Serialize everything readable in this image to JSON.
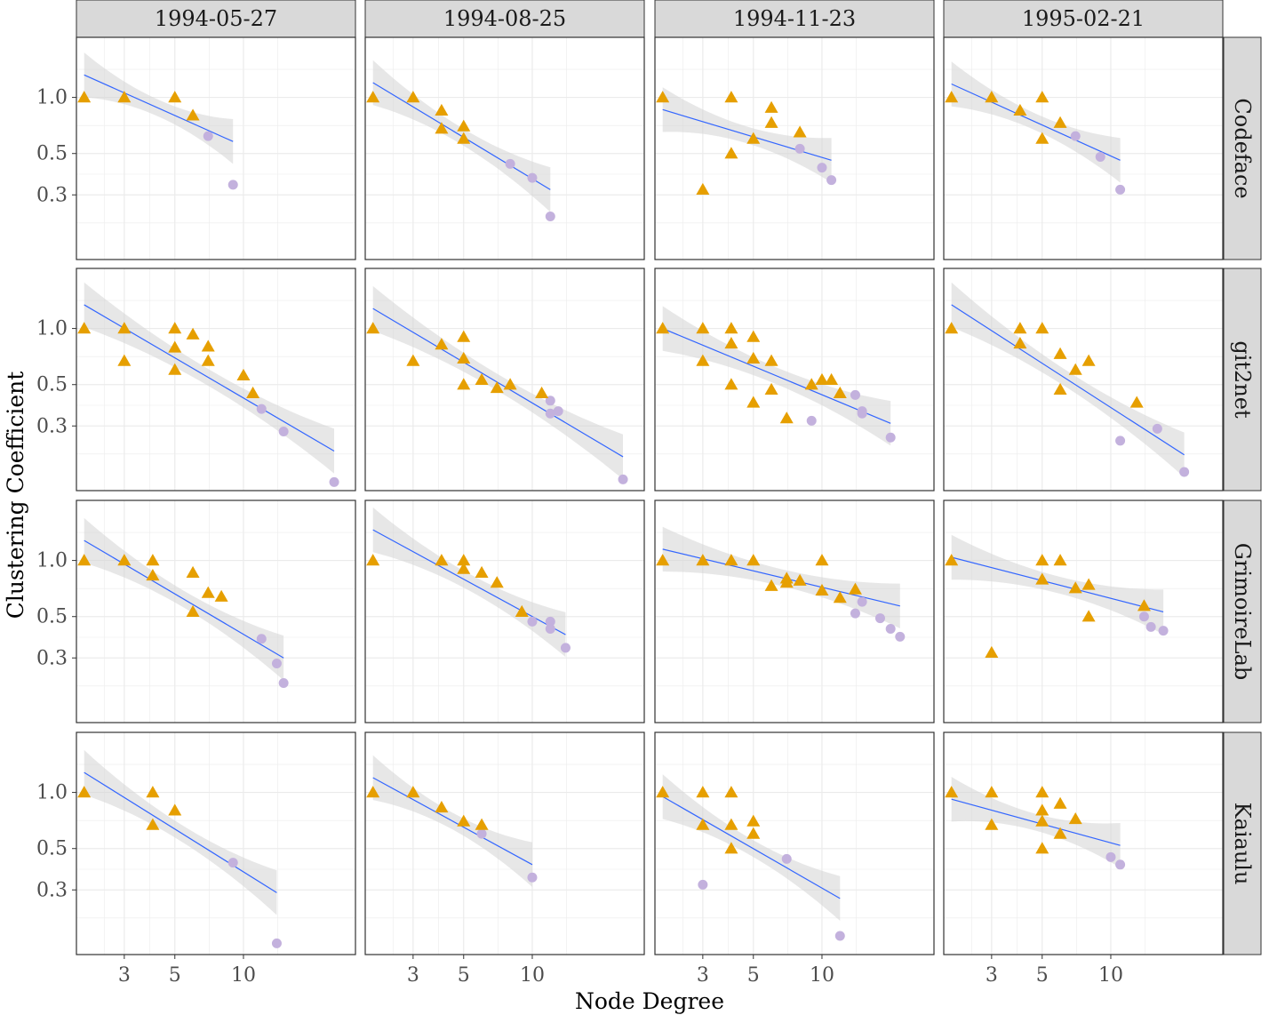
{
  "chart_data": {
    "type": "scatter",
    "facet_type": "grid",
    "xlabel": "Node Degree",
    "ylabel": "Clustering Coefficient",
    "x_scale": "log",
    "y_scale": "log",
    "xlim": [
      1.85,
      31
    ],
    "ylim": [
      0.135,
      2.1
    ],
    "x_ticks": [
      3,
      5,
      10
    ],
    "x_tick_labels": [
      "3",
      "5",
      "10"
    ],
    "y_ticks": [
      0.3,
      0.5,
      1.0
    ],
    "y_tick_labels": [
      "0.3",
      "0.5",
      "1.0"
    ],
    "columns": [
      "1994-05-27",
      "1994-08-25",
      "1994-11-23",
      "1995-02-21"
    ],
    "rows": [
      "Codeface",
      "git2net",
      "GrimoireLab",
      "Kaiaulu"
    ],
    "colors": {
      "triangle": "#E69F00",
      "circle": "#C3B1DD",
      "fit_line": "#3366FF",
      "ribbon": "#EBEBEB",
      "strip": "#D9D9D9",
      "grid": "#EBEBEB",
      "border": "#333333"
    },
    "panels": [
      {
        "row": "Codeface",
        "col": "1994-05-27",
        "triangles": [
          [
            2,
            1.0
          ],
          [
            3,
            1.0
          ],
          [
            5,
            1.0
          ],
          [
            6,
            0.8
          ]
        ],
        "circles": [
          [
            7,
            0.62
          ],
          [
            9,
            0.34
          ]
        ],
        "fit": {
          "x0": 2,
          "x1": 9,
          "y0": 1.32,
          "y1": 0.58
        }
      },
      {
        "row": "Codeface",
        "col": "1994-08-25",
        "triangles": [
          [
            2,
            1.0
          ],
          [
            3,
            1.0
          ],
          [
            4,
            0.85
          ],
          [
            4,
            0.68
          ],
          [
            5,
            0.7
          ],
          [
            5,
            0.6
          ]
        ],
        "circles": [
          [
            8,
            0.44
          ],
          [
            10,
            0.37
          ],
          [
            12,
            0.23
          ]
        ],
        "fit": {
          "x0": 2,
          "x1": 12,
          "y0": 1.2,
          "y1": 0.32
        }
      },
      {
        "row": "Codeface",
        "col": "1994-11-23",
        "triangles": [
          [
            2,
            1.0
          ],
          [
            3,
            0.32
          ],
          [
            4,
            1.0
          ],
          [
            4,
            0.5
          ],
          [
            5,
            0.6
          ],
          [
            6,
            0.88
          ],
          [
            6,
            0.73
          ],
          [
            8,
            0.65
          ]
        ],
        "circles": [
          [
            8,
            0.53
          ],
          [
            10,
            0.42
          ],
          [
            11,
            0.36
          ]
        ],
        "fit": {
          "x0": 2,
          "x1": 11,
          "y0": 0.86,
          "y1": 0.46
        }
      },
      {
        "row": "Codeface",
        "col": "1995-02-21",
        "triangles": [
          [
            2,
            1.0
          ],
          [
            3,
            1.0
          ],
          [
            4,
            0.85
          ],
          [
            5,
            1.0
          ],
          [
            5,
            0.6
          ],
          [
            6,
            0.73
          ]
        ],
        "circles": [
          [
            7,
            0.62
          ],
          [
            9,
            0.48
          ],
          [
            11,
            0.32
          ]
        ],
        "fit": {
          "x0": 2,
          "x1": 11,
          "y0": 1.18,
          "y1": 0.46
        }
      },
      {
        "row": "git2net",
        "col": "1994-05-27",
        "triangles": [
          [
            2,
            1.0
          ],
          [
            3,
            1.0
          ],
          [
            3,
            0.67
          ],
          [
            5,
            1.0
          ],
          [
            5,
            0.79
          ],
          [
            5,
            0.6
          ],
          [
            6,
            0.93
          ],
          [
            7,
            0.8
          ],
          [
            7,
            0.67
          ],
          [
            10,
            0.56
          ],
          [
            11,
            0.45
          ]
        ],
        "circles": [
          [
            12,
            0.37
          ],
          [
            15,
            0.28
          ],
          [
            25,
            0.15
          ]
        ],
        "fit": {
          "x0": 2,
          "x1": 25,
          "y0": 1.34,
          "y1": 0.22
        }
      },
      {
        "row": "git2net",
        "col": "1994-08-25",
        "triangles": [
          [
            2,
            1.0
          ],
          [
            3,
            0.67
          ],
          [
            4,
            0.82
          ],
          [
            5,
            0.9
          ],
          [
            5,
            0.69
          ],
          [
            5,
            0.5
          ],
          [
            6,
            0.53
          ],
          [
            7,
            0.48
          ],
          [
            8,
            0.5
          ],
          [
            11,
            0.45
          ]
        ],
        "circles": [
          [
            12,
            0.41
          ],
          [
            12,
            0.35
          ],
          [
            13,
            0.36
          ],
          [
            25,
            0.155
          ]
        ],
        "fit": {
          "x0": 2,
          "x1": 25,
          "y0": 1.28,
          "y1": 0.205
        }
      },
      {
        "row": "git2net",
        "col": "1994-11-23",
        "triangles": [
          [
            2,
            1.0
          ],
          [
            3,
            1.0
          ],
          [
            3,
            0.67
          ],
          [
            4,
            1.0
          ],
          [
            4,
            0.83
          ],
          [
            4,
            0.5
          ],
          [
            5,
            0.9
          ],
          [
            5,
            0.69
          ],
          [
            5,
            0.4
          ],
          [
            6,
            0.67
          ],
          [
            6,
            0.47
          ],
          [
            7,
            0.33
          ],
          [
            9,
            0.5
          ],
          [
            10,
            0.53
          ],
          [
            11,
            0.53
          ],
          [
            12,
            0.45
          ]
        ],
        "circles": [
          [
            9,
            0.32
          ],
          [
            14,
            0.44
          ],
          [
            15,
            0.36
          ],
          [
            15,
            0.35
          ],
          [
            20,
            0.26
          ]
        ],
        "fit": {
          "x0": 2,
          "x1": 20,
          "y0": 1.0,
          "y1": 0.31
        }
      },
      {
        "row": "git2net",
        "col": "1995-02-21",
        "triangles": [
          [
            2,
            1.0
          ],
          [
            4,
            1.0
          ],
          [
            4,
            0.83
          ],
          [
            5,
            1.0
          ],
          [
            6,
            0.73
          ],
          [
            6,
            0.47
          ],
          [
            7,
            0.6
          ],
          [
            8,
            0.67
          ],
          [
            13,
            0.4
          ]
        ],
        "circles": [
          [
            11,
            0.25
          ],
          [
            16,
            0.29
          ],
          [
            21,
            0.17
          ]
        ],
        "fit": {
          "x0": 2,
          "x1": 21,
          "y0": 1.34,
          "y1": 0.21
        }
      },
      {
        "row": "GrimoireLab",
        "col": "1994-05-27",
        "triangles": [
          [
            2,
            1.0
          ],
          [
            3,
            1.0
          ],
          [
            4,
            1.0
          ],
          [
            4,
            0.83
          ],
          [
            6,
            0.86
          ],
          [
            6,
            0.53
          ],
          [
            7,
            0.67
          ],
          [
            8,
            0.64
          ]
        ],
        "circles": [
          [
            12,
            0.38
          ],
          [
            14,
            0.28
          ],
          [
            15,
            0.22
          ]
        ],
        "fit": {
          "x0": 2,
          "x1": 15,
          "y0": 1.28,
          "y1": 0.3
        }
      },
      {
        "row": "GrimoireLab",
        "col": "1994-08-25",
        "triangles": [
          [
            2,
            1.0
          ],
          [
            4,
            1.0
          ],
          [
            5,
            1.0
          ],
          [
            5,
            0.9
          ],
          [
            6,
            0.86
          ],
          [
            7,
            0.76
          ],
          [
            9,
            0.53
          ]
        ],
        "circles": [
          [
            10,
            0.47
          ],
          [
            12,
            0.47
          ],
          [
            12,
            0.43
          ],
          [
            14,
            0.34
          ]
        ],
        "fit": {
          "x0": 2,
          "x1": 14,
          "y0": 1.46,
          "y1": 0.4
        }
      },
      {
        "row": "GrimoireLab",
        "col": "1994-11-23",
        "triangles": [
          [
            2,
            1.0
          ],
          [
            3,
            1.0
          ],
          [
            4,
            1.0
          ],
          [
            5,
            1.0
          ],
          [
            6,
            0.73
          ],
          [
            7,
            0.8
          ],
          [
            7,
            0.76
          ],
          [
            8,
            0.78
          ],
          [
            10,
            1.0
          ],
          [
            10,
            0.69
          ],
          [
            12,
            0.63
          ],
          [
            14,
            0.7
          ]
        ],
        "circles": [
          [
            14,
            0.52
          ],
          [
            15,
            0.6
          ],
          [
            18,
            0.49
          ],
          [
            20,
            0.43
          ],
          [
            22,
            0.39
          ]
        ],
        "fit": {
          "x0": 2,
          "x1": 22,
          "y0": 1.15,
          "y1": 0.57
        }
      },
      {
        "row": "GrimoireLab",
        "col": "1995-02-21",
        "triangles": [
          [
            2,
            1.0
          ],
          [
            3,
            0.32
          ],
          [
            5,
            1.0
          ],
          [
            5,
            0.79
          ],
          [
            6,
            1.0
          ],
          [
            7,
            0.71
          ],
          [
            8,
            0.74
          ],
          [
            8,
            0.5
          ],
          [
            14,
            0.57
          ]
        ],
        "circles": [
          [
            14,
            0.5
          ],
          [
            15,
            0.44
          ],
          [
            17,
            0.42
          ]
        ],
        "fit": {
          "x0": 2,
          "x1": 17,
          "y0": 1.04,
          "y1": 0.53
        }
      },
      {
        "row": "Kaiaulu",
        "col": "1994-05-27",
        "triangles": [
          [
            2,
            1.0
          ],
          [
            4,
            1.0
          ],
          [
            4,
            0.67
          ],
          [
            5,
            0.8
          ]
        ],
        "circles": [
          [
            9,
            0.42
          ],
          [
            14,
            0.155
          ]
        ],
        "fit": {
          "x0": 2,
          "x1": 14,
          "y0": 1.28,
          "y1": 0.29
        }
      },
      {
        "row": "Kaiaulu",
        "col": "1994-08-25",
        "triangles": [
          [
            2,
            1.0
          ],
          [
            3,
            1.0
          ],
          [
            4,
            0.83
          ],
          [
            5,
            0.7
          ],
          [
            6,
            0.67
          ]
        ],
        "circles": [
          [
            6,
            0.6
          ],
          [
            10,
            0.35
          ]
        ],
        "fit": {
          "x0": 2,
          "x1": 10,
          "y0": 1.2,
          "y1": 0.41
        }
      },
      {
        "row": "Kaiaulu",
        "col": "1994-11-23",
        "triangles": [
          [
            2,
            1.0
          ],
          [
            3,
            1.0
          ],
          [
            3,
            0.67
          ],
          [
            4,
            1.0
          ],
          [
            4,
            0.67
          ],
          [
            4,
            0.5
          ],
          [
            5,
            0.7
          ],
          [
            5,
            0.6
          ]
        ],
        "circles": [
          [
            3,
            0.32
          ],
          [
            7,
            0.44
          ],
          [
            12,
            0.17
          ]
        ],
        "fit": {
          "x0": 2,
          "x1": 12,
          "y0": 0.95,
          "y1": 0.27
        }
      },
      {
        "row": "Kaiaulu",
        "col": "1995-02-21",
        "triangles": [
          [
            2,
            1.0
          ],
          [
            3,
            1.0
          ],
          [
            3,
            0.67
          ],
          [
            5,
            1.0
          ],
          [
            5,
            0.8
          ],
          [
            5,
            0.7
          ],
          [
            5,
            0.5
          ],
          [
            6,
            0.87
          ],
          [
            6,
            0.6
          ],
          [
            7,
            0.72
          ]
        ],
        "circles": [
          [
            10,
            0.45
          ],
          [
            11,
            0.41
          ]
        ],
        "fit": {
          "x0": 2,
          "x1": 11,
          "y0": 0.92,
          "y1": 0.52
        }
      }
    ]
  }
}
